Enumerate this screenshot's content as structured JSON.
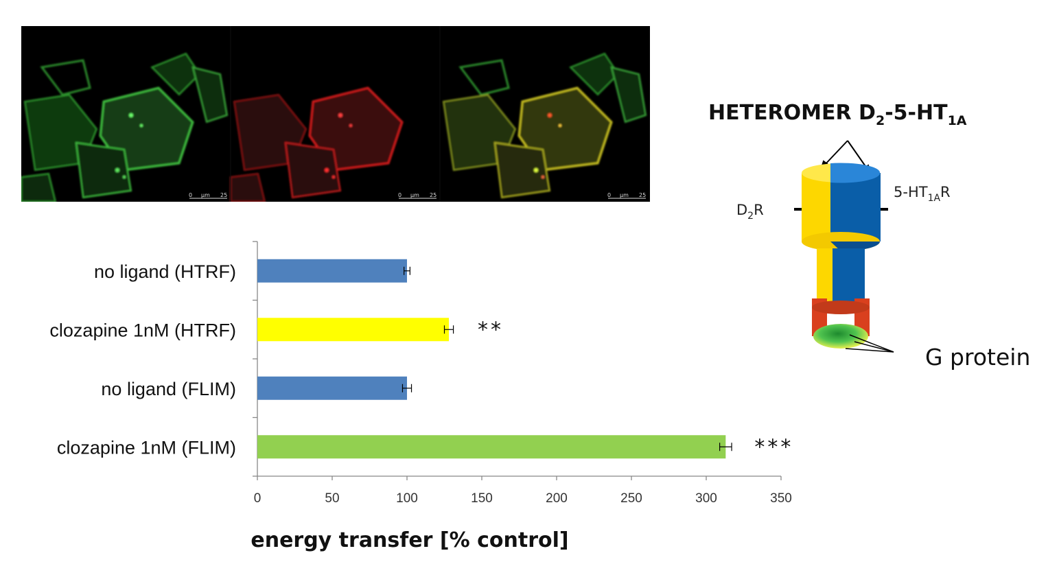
{
  "chart_data": {
    "type": "bar",
    "orientation": "horizontal",
    "categories": [
      "no ligand (HTRF)",
      "clozapine 1nM (HTRF)",
      "no ligand (FLIM)",
      "clozapine  1nM (FLIM)"
    ],
    "values": [
      100,
      128,
      100,
      313
    ],
    "errors": [
      2,
      3,
      3,
      4
    ],
    "colors": [
      "#4f81bd",
      "#ffff00",
      "#4f81bd",
      "#92d050"
    ],
    "significance": [
      "",
      "**",
      "",
      "***"
    ],
    "xlabel": "energy transfer [% control]",
    "xlim": [
      0,
      350
    ],
    "xticks": [
      0,
      50,
      100,
      150,
      200,
      250,
      300,
      350
    ],
    "grid": false
  },
  "microscopy": {
    "scale_labels": [
      {
        "zero": "0",
        "unit": "μm",
        "value": "25"
      },
      {
        "zero": "0",
        "unit": "μm",
        "value": "25"
      },
      {
        "zero": "0",
        "unit": "μm",
        "value": "25"
      }
    ]
  },
  "diagram": {
    "title_main": "HETEROMER D",
    "title_sub1": "2",
    "title_mid": "-5-HT",
    "title_sub2": "1A",
    "left_label_main": "D",
    "left_label_sub": "2",
    "left_label_end": "R",
    "right_label_main": "5-HT",
    "right_label_sub": "1A",
    "right_label_end": "R",
    "gprotein_label": "G protein"
  }
}
